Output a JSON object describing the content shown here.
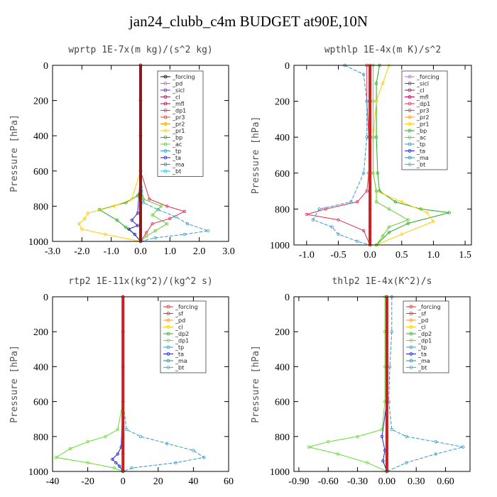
{
  "title": "jan24_clubb_c4m  BUDGET at90E,10N",
  "chart_data": [
    {
      "type": "line",
      "title": "wprtp  1E-7x(m kg)/(s^2 kg)",
      "ylabel": "Pressure [hPa]",
      "xlim": [
        -3,
        3
      ],
      "ylim": [
        1000,
        0
      ],
      "xticks": [
        -3,
        -2,
        -1,
        0,
        1,
        2,
        3
      ],
      "xtick_labels": [
        "-3.0",
        "-2.0",
        "-1.0",
        "0.0",
        "1.0",
        "2.0",
        "3.0"
      ],
      "yticks": [
        0,
        200,
        400,
        600,
        800,
        1000
      ],
      "legend": [
        "_forcing",
        "_pd",
        "_sicl",
        "_cl",
        "_mfl",
        "_dp1",
        "_pr3",
        "_pr2",
        "_pr1",
        "_bp",
        "_ac",
        "_tp",
        "_ta",
        "_ma",
        "_bt"
      ],
      "colors": [
        "#000000",
        "#b070d0",
        "#7030a0",
        "#8b2060",
        "#c00050",
        "#e03050",
        "#e04040",
        "#ff9900",
        "#ffcc00",
        "#22aa22",
        "#66cc33",
        "#3399cc",
        "#2222cc",
        "#2a8ab0",
        "#00ccff"
      ],
      "series": [
        {
          "name": "_bp",
          "x": [
            0,
            0,
            0,
            0,
            0,
            -0.1,
            -0.5,
            -1.4,
            -0.8,
            -0.5,
            -0.2,
            0
          ],
          "y": [
            0,
            200,
            400,
            600,
            700,
            740,
            780,
            820,
            880,
            920,
            960,
            1000
          ]
        },
        {
          "name": "_ac",
          "x": [
            0,
            0,
            0,
            0,
            0,
            0.1,
            0.7,
            0.4,
            0.9,
            0.5,
            0.2,
            0
          ],
          "y": [
            0,
            200,
            400,
            600,
            700,
            760,
            800,
            850,
            900,
            940,
            970,
            1000
          ]
        },
        {
          "name": "_pr1",
          "x": [
            0,
            0,
            0,
            0,
            -0.3,
            -0.9,
            -1.8,
            -1.9,
            -2.1,
            -2.0,
            -1.2,
            0
          ],
          "y": [
            0,
            200,
            400,
            600,
            760,
            800,
            840,
            870,
            900,
            930,
            960,
            1000
          ]
        },
        {
          "name": "_dp1",
          "x": [
            0,
            0,
            0,
            0,
            0.3,
            0.9,
            1.5,
            1.0,
            0.4,
            0.2,
            0
          ],
          "y": [
            0,
            200,
            400,
            600,
            760,
            800,
            830,
            870,
            900,
            950,
            1000
          ]
        },
        {
          "name": "_tp",
          "x": [
            0,
            0,
            0,
            0,
            0.1,
            0.6,
            1.2,
            1.6,
            2.3,
            1.5,
            0.5,
            0
          ],
          "y": [
            0,
            200,
            400,
            600,
            780,
            820,
            860,
            900,
            940,
            960,
            980,
            1000
          ]
        },
        {
          "name": "_ta",
          "x": [
            0,
            0,
            0,
            0,
            -0.1,
            -0.3,
            -0.1,
            -0.4,
            -0.2,
            0
          ],
          "y": [
            0,
            200,
            400,
            600,
            840,
            880,
            910,
            930,
            960,
            1000
          ]
        },
        {
          "name": "_forcing",
          "x": [
            0,
            0,
            0,
            0,
            0,
            0,
            0
          ],
          "y": [
            0,
            200,
            400,
            600,
            800,
            900,
            1000
          ]
        }
      ]
    },
    {
      "type": "line",
      "title": "wpthlp  1E-4x(m K)/s^2",
      "ylabel": "Pressure [hPa]",
      "xlim": [
        -1.2,
        1.6
      ],
      "ylim": [
        1000,
        0
      ],
      "xticks": [
        -1.0,
        -0.5,
        0.0,
        0.5,
        1.0,
        1.5
      ],
      "xtick_labels": [
        "-1.0",
        "-0.5",
        "0.0",
        "0.5",
        "1.0",
        "1.5"
      ],
      "yticks": [
        0,
        200,
        400,
        600,
        800,
        1000
      ],
      "legend": [
        "_forcing",
        "_sicl",
        "_cl",
        "_mfl",
        "_dp1",
        "_pr3",
        "_pr2",
        "_pr1",
        "_bp",
        "_ac",
        "_tp",
        "_ta",
        "_ma",
        "_bt"
      ],
      "colors": [
        "#b070d0",
        "#7030a0",
        "#8b2060",
        "#c00050",
        "#e03050",
        "#e04040",
        "#ff9900",
        "#ffcc00",
        "#22aa22",
        "#66cc33",
        "#3399cc",
        "#2222cc",
        "#2a8ab0",
        "#00ccff"
      ],
      "series": [
        {
          "name": "_bp",
          "x": [
            0.15,
            0.1,
            0.1,
            0.1,
            0.12,
            0.15,
            0.4,
            0.8,
            1.25,
            0.6,
            0.3,
            0.1
          ],
          "y": [
            0,
            100,
            200,
            400,
            600,
            700,
            760,
            800,
            820,
            880,
            930,
            1000
          ]
        },
        {
          "name": "_pr1",
          "x": [
            0.3,
            0.2,
            0.1,
            0.05,
            0.05,
            0.1,
            0.5,
            0.9,
            1.0,
            0.5,
            0.1
          ],
          "y": [
            0,
            100,
            200,
            400,
            600,
            700,
            760,
            820,
            870,
            940,
            1000
          ]
        },
        {
          "name": "_dp1",
          "x": [
            -0.05,
            -0.05,
            -0.02,
            -0.02,
            -0.05,
            -0.2,
            -0.7,
            -1.0,
            -0.5,
            -0.1,
            0
          ],
          "y": [
            0,
            200,
            400,
            600,
            700,
            760,
            800,
            830,
            860,
            920,
            1000
          ]
        },
        {
          "name": "_tp",
          "x": [
            -0.4,
            -0.1,
            -0.05,
            -0.05,
            -0.1,
            -0.3,
            -0.8,
            -0.9,
            -0.6,
            -0.5,
            -0.2,
            0
          ],
          "y": [
            0,
            50,
            200,
            400,
            600,
            760,
            800,
            860,
            900,
            940,
            980,
            1000
          ]
        },
        {
          "name": "_ac",
          "x": [
            0.05,
            0.05,
            0.05,
            0.05,
            0.1,
            0.1,
            0.3,
            0.6,
            0.3,
            0.2,
            0.1
          ],
          "y": [
            0,
            200,
            400,
            600,
            700,
            760,
            800,
            860,
            900,
            950,
            1000
          ]
        },
        {
          "name": "_forcing",
          "x": [
            0,
            0,
            0,
            0,
            0,
            0,
            0
          ],
          "y": [
            0,
            200,
            400,
            600,
            800,
            900,
            1000
          ]
        }
      ]
    },
    {
      "type": "line",
      "title": "rtp2  1E-11x(kg^2)/(kg^2 s)",
      "ylabel": "Pressure [hPa]",
      "xlim": [
        -40,
        60
      ],
      "ylim": [
        1000,
        0
      ],
      "xticks": [
        -40,
        -20,
        0,
        20,
        40,
        60
      ],
      "xtick_labels": [
        "-40",
        "-20",
        "0",
        "20",
        "40",
        "60"
      ],
      "yticks": [
        0,
        200,
        400,
        600,
        800,
        1000
      ],
      "legend": [
        "_forcing",
        "_sf",
        "_pd",
        "_cl",
        "_dp2",
        "_dp1",
        "_tp",
        "_ta",
        "_ma",
        "_bt"
      ],
      "colors": [
        "#e03030",
        "#ff2020",
        "#ff9900",
        "#ffcc00",
        "#33aa33",
        "#66dd33",
        "#3399cc",
        "#2222cc",
        "#2a8ab0",
        "#00ccff"
      ],
      "series": [
        {
          "name": "_tp",
          "x": [
            0,
            0,
            0,
            0,
            2,
            10,
            25,
            40,
            46,
            30,
            5,
            0
          ],
          "y": [
            0,
            200,
            400,
            600,
            760,
            800,
            840,
            880,
            920,
            950,
            980,
            1000
          ]
        },
        {
          "name": "_dp1",
          "x": [
            0,
            0,
            0,
            0,
            -3,
            -10,
            -20,
            -30,
            -38,
            -20,
            -5,
            0
          ],
          "y": [
            0,
            200,
            400,
            600,
            760,
            800,
            830,
            870,
            920,
            950,
            980,
            1000
          ]
        },
        {
          "name": "_ta",
          "x": [
            0,
            0,
            0,
            0,
            -1,
            -3,
            -6,
            -4,
            -2,
            0
          ],
          "y": [
            0,
            200,
            400,
            600,
            860,
            900,
            930,
            950,
            970,
            1000
          ]
        },
        {
          "name": "_forcing",
          "x": [
            0,
            0,
            0,
            0,
            0,
            0,
            0
          ],
          "y": [
            0,
            200,
            400,
            600,
            800,
            900,
            1000
          ]
        }
      ]
    },
    {
      "type": "line",
      "title": "thlp2  1E-4x(K^2)/s",
      "ylabel": "Pressure [hPa]",
      "xlim": [
        -0.95,
        0.85
      ],
      "ylim": [
        1000,
        0
      ],
      "xticks": [
        -0.9,
        -0.6,
        -0.3,
        0.0,
        0.3,
        0.6
      ],
      "xtick_labels": [
        "-0.90",
        "-0.60",
        "-0.30",
        "0.00",
        "0.30",
        "0.60"
      ],
      "yticks": [
        0,
        200,
        400,
        600,
        800,
        1000
      ],
      "legend": [
        "_forcing",
        "_sf",
        "_pd",
        "_cl",
        "_dp2",
        "_dp1",
        "_tp",
        "_ta",
        "_ma",
        "_bt"
      ],
      "colors": [
        "#e03030",
        "#ff2020",
        "#ff9900",
        "#ffcc00",
        "#33aa33",
        "#66dd33",
        "#3399cc",
        "#2222cc",
        "#2a8ab0",
        "#00ccff"
      ],
      "series": [
        {
          "name": "_tp",
          "x": [
            0.05,
            0.05,
            0.03,
            0.02,
            0.05,
            0.2,
            0.5,
            0.78,
            0.5,
            0.2,
            0
          ],
          "y": [
            0,
            200,
            400,
            600,
            760,
            800,
            830,
            860,
            900,
            950,
            1000
          ]
        },
        {
          "name": "_dp1",
          "x": [
            -0.02,
            -0.02,
            -0.02,
            -0.02,
            -0.05,
            -0.3,
            -0.6,
            -0.8,
            -0.5,
            -0.2,
            0
          ],
          "y": [
            0,
            200,
            400,
            600,
            760,
            800,
            830,
            860,
            900,
            950,
            1000
          ]
        },
        {
          "name": "_ta",
          "x": [
            0,
            0,
            0,
            0,
            -0.05,
            -0.02,
            -0.04,
            0
          ],
          "y": [
            0,
            200,
            400,
            600,
            800,
            880,
            940,
            1000
          ]
        },
        {
          "name": "_forcing",
          "x": [
            0,
            0,
            0,
            0,
            0,
            0,
            0
          ],
          "y": [
            0,
            200,
            400,
            600,
            800,
            900,
            1000
          ]
        }
      ]
    }
  ]
}
